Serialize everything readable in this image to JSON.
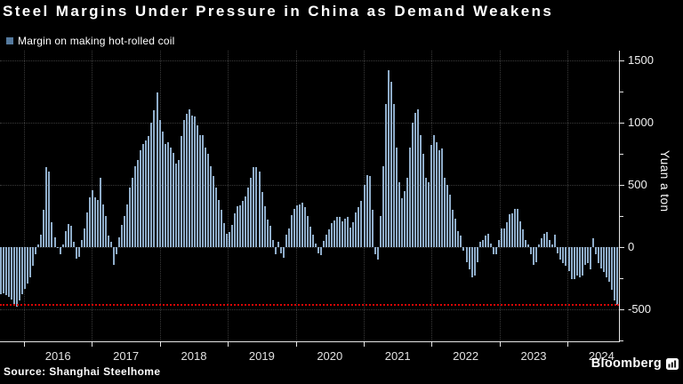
{
  "header": {
    "title": "Steel Margins Under Pressure in China as Demand Weakens"
  },
  "legend": {
    "label": "Margin on making hot-rolled coil"
  },
  "footer": {
    "source": "Source: Shanghai Steelhome",
    "brand": "Bloomberg"
  },
  "colors": {
    "background": "#000000",
    "bar": "#8fadca",
    "legend_swatch": "#557a9e",
    "grid": "#3a3a3a",
    "axis": "#e6e6e6",
    "tick_label": "#f2f2f2",
    "year_label": "#e2e2e2",
    "reference_line": "#d40505"
  },
  "chart_data": {
    "type": "bar",
    "title": "Steel Margins Under Pressure in China as Demand Weakens",
    "series_name": "Margin on making hot-rolled coil",
    "ylabel": "Yuan a ton",
    "xlabel": "",
    "xticklabels": [
      "2016",
      "2017",
      "2018",
      "2019",
      "2020",
      "2021",
      "2022",
      "2023",
      "2024"
    ],
    "xlim_years": [
      2015.65,
      2024.75
    ],
    "ylim": [
      -757,
      1579
    ],
    "yticks_major": [
      1500,
      1000,
      500,
      0,
      -500
    ],
    "yticks_minor": [
      1250,
      750,
      250,
      -250,
      -750
    ],
    "grid": "dotted horizontal at 500s and vertical at year starts",
    "legend_position": "top-left",
    "reference_line": {
      "value": -465,
      "color": "#d40505",
      "style": "dotted"
    },
    "values": [
      -380,
      -372,
      -388,
      -400,
      -420,
      -470,
      -480,
      -430,
      -375,
      -335,
      -290,
      -240,
      -150,
      -60,
      20,
      100,
      300,
      640,
      610,
      200,
      80,
      -10,
      -60,
      20,
      130,
      185,
      170,
      40,
      -90,
      -80,
      60,
      150,
      280,
      400,
      460,
      400,
      380,
      560,
      340,
      250,
      90,
      40,
      -140,
      -60,
      80,
      180,
      250,
      340,
      480,
      560,
      650,
      700,
      780,
      830,
      860,
      890,
      1000,
      1100,
      1240,
      1020,
      930,
      830,
      840,
      800,
      760,
      670,
      700,
      890,
      1020,
      1070,
      1110,
      1060,
      1050,
      980,
      900,
      900,
      800,
      750,
      650,
      570,
      480,
      380,
      300,
      190,
      110,
      125,
      180,
      270,
      330,
      335,
      370,
      410,
      480,
      555,
      640,
      640,
      610,
      440,
      330,
      220,
      170,
      60,
      -60,
      40,
      -50,
      -85,
      100,
      150,
      260,
      310,
      335,
      345,
      360,
      320,
      250,
      165,
      100,
      30,
      -50,
      -65,
      50,
      100,
      140,
      190,
      215,
      240,
      240,
      210,
      230,
      240,
      160,
      200,
      280,
      325,
      370,
      500,
      580,
      575,
      300,
      -60,
      -100,
      250,
      650,
      1150,
      1420,
      1330,
      1150,
      800,
      520,
      390,
      450,
      560,
      800,
      1000,
      1080,
      1110,
      900,
      750,
      560,
      520,
      820,
      900,
      840,
      780,
      790,
      560,
      500,
      420,
      300,
      230,
      130,
      90,
      -30,
      -120,
      -180,
      -240,
      -230,
      -120,
      40,
      55,
      90,
      110,
      30,
      -60,
      -55,
      60,
      150,
      150,
      200,
      265,
      270,
      305,
      310,
      210,
      140,
      60,
      20,
      -60,
      -140,
      -120,
      20,
      70,
      110,
      125,
      60,
      20,
      100,
      -50,
      -100,
      -130,
      -150,
      -190,
      -260,
      -260,
      -230,
      -245,
      -225,
      -140,
      -130,
      -175,
      75,
      -60,
      -130,
      -170,
      -200,
      -240,
      -280,
      -340,
      -430,
      -465
    ]
  }
}
